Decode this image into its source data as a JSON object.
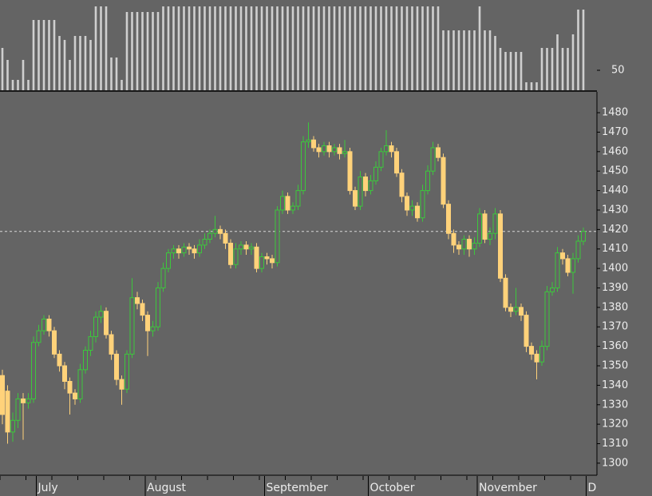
{
  "chart_data": {
    "type": "candlestick",
    "categories": [
      null,
      null,
      null,
      null,
      null,
      null,
      null,
      "July",
      null,
      null,
      null,
      null,
      null,
      null,
      null,
      null,
      null,
      null,
      null,
      null,
      null,
      null,
      null,
      null,
      null,
      null,
      null,
      null,
      "August",
      null,
      null,
      null,
      null,
      null,
      null,
      null,
      null,
      null,
      null,
      null,
      null,
      null,
      null,
      null,
      null,
      null,
      null,
      null,
      null,
      null,
      null,
      "September",
      null,
      null,
      null,
      null,
      null,
      null,
      null,
      null,
      null,
      null,
      null,
      null,
      null,
      null,
      null,
      null,
      null,
      null,
      null,
      "October",
      null,
      null,
      null,
      null,
      null,
      null,
      null,
      null,
      null,
      null,
      null,
      null,
      null,
      null,
      null,
      null,
      null,
      null,
      null,
      null,
      "November",
      null,
      null,
      null,
      null,
      null,
      null,
      null,
      null,
      null,
      null,
      null,
      null,
      null,
      null,
      null,
      null,
      null,
      null,
      null,
      null,
      "D"
    ],
    "open": [
      1345,
      1337,
      1316,
      1322,
      1333,
      1331,
      1333,
      1362,
      1368,
      1374,
      1368,
      1356,
      1350,
      1342,
      1336,
      1333,
      1348,
      1358,
      1365,
      1375,
      1378,
      1366,
      1356,
      1343,
      1338,
      1356,
      1385,
      1382,
      1376,
      1368,
      1370,
      1390,
      1400,
      1408,
      1410,
      1408,
      1411,
      1410,
      1408,
      1412,
      1415,
      1418,
      1420,
      1418,
      1413,
      1402,
      1410,
      1412,
      1410,
      1411,
      1400,
      1406,
      1405,
      1403,
      1430,
      1437,
      1430,
      1432,
      1440,
      1465,
      1466,
      1462,
      1460,
      1463,
      1460,
      1462,
      1459,
      1460,
      1440,
      1432,
      1447,
      1440,
      1445,
      1452,
      1460,
      1463,
      1460,
      1449,
      1437,
      1430,
      1432,
      1426,
      1440,
      1450,
      1462,
      1457,
      1433,
      1418,
      1412,
      1410,
      1415,
      1410,
      1413,
      1428,
      1415,
      1418,
      1428,
      1395,
      1380,
      1378,
      1380,
      1376,
      1360,
      1356,
      1352,
      1360,
      1388,
      1390,
      1408,
      1405,
      1398,
      1405,
      1414,
      null
    ],
    "high": [
      1348,
      1340,
      1326,
      1336,
      1336,
      1336,
      1365,
      1371,
      1376,
      1376,
      1370,
      1358,
      1352,
      1344,
      1338,
      1351,
      1360,
      1368,
      1378,
      1381,
      1380,
      1368,
      1358,
      1345,
      1358,
      1395,
      1388,
      1384,
      1378,
      1373,
      1393,
      1403,
      1410,
      1412,
      1412,
      1413,
      1413,
      1412,
      1415,
      1418,
      1420,
      1427,
      1422,
      1420,
      1415,
      1413,
      1414,
      1414,
      1413,
      1413,
      1408,
      1408,
      1407,
      1432,
      1440,
      1439,
      1434,
      1443,
      1468,
      1475,
      1468,
      1464,
      1465,
      1465,
      1464,
      1464,
      1466,
      1462,
      1442,
      1450,
      1449,
      1448,
      1455,
      1462,
      1471,
      1465,
      1462,
      1451,
      1439,
      1435,
      1434,
      1443,
      1453,
      1465,
      1464,
      1459,
      1435,
      1420,
      1414,
      1417,
      1417,
      1416,
      1431,
      1430,
      1421,
      1431,
      1430,
      1397,
      1382,
      1390,
      1382,
      1378,
      1362,
      1358,
      1363,
      1391,
      1393,
      1411,
      1410,
      1407,
      1408,
      1417,
      1421,
      null
    ],
    "low": [
      1320,
      1310,
      1311,
      1318,
      1312,
      1328,
      1331,
      1360,
      1366,
      1365,
      1354,
      1347,
      1338,
      1325,
      1330,
      1331,
      1346,
      1355,
      1362,
      1372,
      1364,
      1353,
      1340,
      1330,
      1336,
      1354,
      1379,
      1373,
      1355,
      1365,
      1368,
      1388,
      1398,
      1405,
      1405,
      1406,
      1407,
      1405,
      1406,
      1410,
      1413,
      1416,
      1415,
      1410,
      1400,
      1400,
      1407,
      1407,
      1407,
      1398,
      1398,
      1402,
      1400,
      1401,
      1428,
      1428,
      1428,
      1430,
      1438,
      1462,
      1460,
      1457,
      1458,
      1457,
      1458,
      1456,
      1457,
      1438,
      1430,
      1430,
      1437,
      1438,
      1443,
      1450,
      1458,
      1457,
      1447,
      1434,
      1427,
      1427,
      1424,
      1424,
      1438,
      1448,
      1455,
      1431,
      1415,
      1408,
      1407,
      1407,
      1406,
      1407,
      1411,
      1413,
      1412,
      1415,
      1393,
      1378,
      1375,
      1376,
      1373,
      1357,
      1353,
      1343,
      1350,
      1358,
      1386,
      1388,
      1402,
      1396,
      1387,
      1403,
      1412,
      null
    ],
    "close": [
      1325,
      1316,
      1322,
      1333,
      1331,
      1333,
      1362,
      1368,
      1374,
      1368,
      1356,
      1350,
      1342,
      1336,
      1333,
      1348,
      1358,
      1365,
      1375,
      1378,
      1366,
      1356,
      1343,
      1338,
      1356,
      1385,
      1382,
      1376,
      1368,
      1370,
      1390,
      1400,
      1408,
      1410,
      1408,
      1411,
      1410,
      1408,
      1412,
      1415,
      1418,
      1420,
      1418,
      1413,
      1402,
      1410,
      1412,
      1410,
      1411,
      1400,
      1406,
      1405,
      1403,
      1430,
      1437,
      1430,
      1432,
      1440,
      1465,
      1466,
      1462,
      1460,
      1463,
      1460,
      1462,
      1459,
      1460,
      1440,
      1432,
      1447,
      1440,
      1445,
      1452,
      1460,
      1463,
      1460,
      1449,
      1437,
      1430,
      1432,
      1426,
      1440,
      1450,
      1462,
      1457,
      1433,
      1418,
      1412,
      1410,
      1415,
      1410,
      1413,
      1428,
      1415,
      1418,
      1428,
      1395,
      1380,
      1378,
      1380,
      1376,
      1360,
      1356,
      1352,
      1360,
      1388,
      1390,
      1408,
      1405,
      1398,
      1405,
      1414,
      1419,
      null
    ],
    "up_color": "#3cc83c",
    "down_color": "#ffd27a",
    "ylim": [
      1293.8,
      1490.7
    ],
    "yticks": [
      1300,
      1310,
      1320,
      1330,
      1340,
      1350,
      1360,
      1370,
      1380,
      1390,
      1400,
      1410,
      1420,
      1430,
      1440,
      1450,
      1460,
      1470,
      1480
    ],
    "reference_line": 1419,
    "reference_color": "#d8d8d8",
    "indicator": {
      "type": "bar",
      "values": [
        106,
        76,
        26,
        26,
        76,
        26,
        176,
        176,
        176,
        176,
        176,
        136,
        126,
        76,
        136,
        136,
        136,
        126,
        210,
        210,
        210,
        82,
        82,
        26,
        196,
        196,
        196,
        196,
        196,
        196,
        196,
        210,
        210,
        210,
        210,
        210,
        210,
        210,
        210,
        210,
        210,
        210,
        210,
        210,
        210,
        210,
        210,
        210,
        210,
        210,
        210,
        210,
        210,
        210,
        210,
        210,
        210,
        210,
        210,
        210,
        210,
        210,
        210,
        210,
        210,
        210,
        210,
        210,
        210,
        210,
        210,
        210,
        210,
        210,
        210,
        210,
        210,
        210,
        210,
        210,
        210,
        210,
        210,
        210,
        210,
        150,
        150,
        150,
        150,
        150,
        150,
        150,
        210,
        150,
        150,
        136,
        106,
        96,
        96,
        96,
        96,
        20,
        20,
        20,
        106,
        106,
        106,
        140,
        106,
        106,
        140,
        202,
        202,
        null
      ],
      "color": "#cfcfcf",
      "ylim": [
        0,
        226
      ],
      "yticks": [
        50
      ]
    }
  }
}
